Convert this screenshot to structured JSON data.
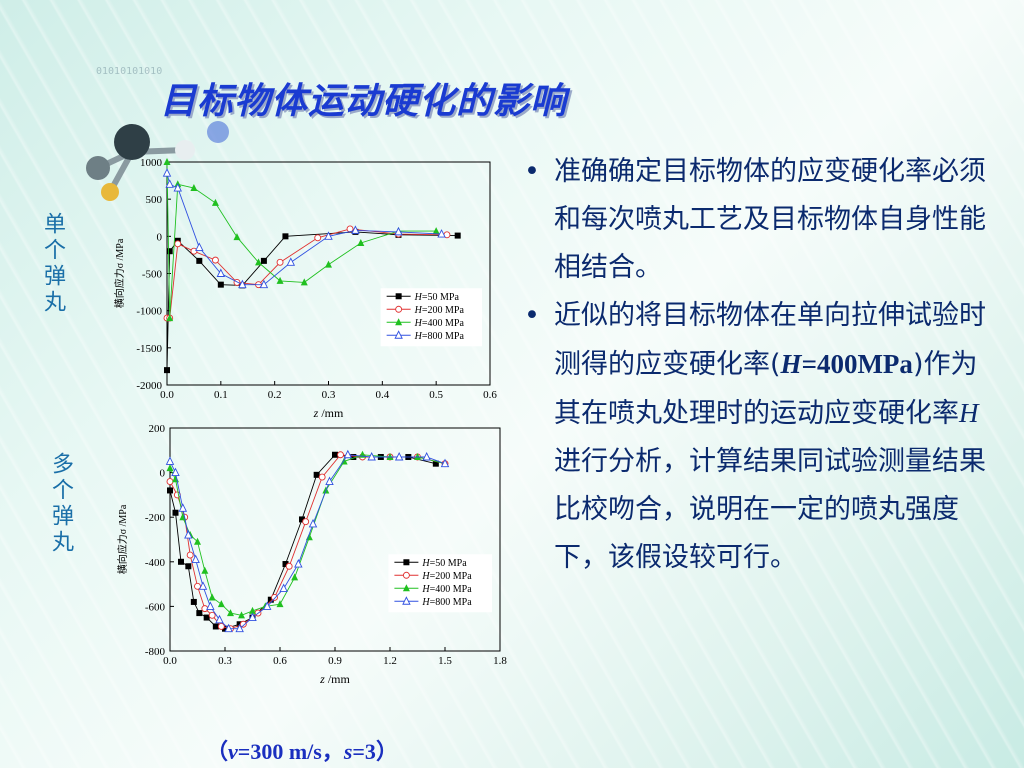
{
  "slide": {
    "title": "目标物体运动硬化的影响",
    "binary_text": "01010101010",
    "label_single": "单个弹丸",
    "label_multi": "多个弹丸",
    "bullet1": "准确确定目标物体的应变硬化率必须和每次喷丸工艺及目标物体自身性能相结合。",
    "bullet2_a": "近似的将目标物体在单向拉伸试验时测得的应变硬化率(",
    "bullet2_h": "H",
    "bullet2_val": "=400MPa",
    "bullet2_b": ")作为其在喷丸处理时的运动应变硬化率",
    "bullet2_c": " 进行分析，计算结果同试验测量结果比校吻合，说明在一定的喷丸强度下，该假设较可行。",
    "bullet_char": "•",
    "caption_open": "（",
    "caption_v": "v",
    "caption_v_val": "=300 m/s，",
    "caption_s": "s",
    "caption_s_val": "=3",
    "caption_close": "）"
  },
  "chart_data": [
    {
      "type": "line",
      "xlabel_var": "z",
      "xlabel_unit": " /mm",
      "ylabel": "横向应力σ /MPa",
      "xlim": [
        0.0,
        0.6
      ],
      "ylim": [
        -2000,
        1000
      ],
      "xticks": [
        0.0,
        0.1,
        0.2,
        0.3,
        0.4,
        0.5,
        0.6
      ],
      "xtick_labels": [
        "0.0",
        "0.1",
        "0.2",
        "0.3",
        "0.4",
        "0.5",
        "0.6"
      ],
      "yticks": [
        1000,
        500,
        0,
        -500,
        -1000,
        -1500,
        -2000
      ],
      "ytick_labels": [
        "1000",
        "500",
        "0",
        "-500",
        "-1000",
        "-1500",
        "-2000"
      ],
      "legend_position": "right-middle",
      "series": [
        {
          "name": "H=50 MPa",
          "label_var": "H",
          "label_rest": "=50 MPa",
          "color": "#000000",
          "marker": "square-filled",
          "x": [
            0.0,
            0.005,
            0.02,
            0.06,
            0.1,
            0.14,
            0.18,
            0.22,
            0.35,
            0.43,
            0.54
          ],
          "y": [
            -1800,
            -200,
            -60,
            -330,
            -650,
            -660,
            -330,
            0,
            60,
            20,
            10
          ]
        },
        {
          "name": "H=200 MPa",
          "label_var": "H",
          "label_rest": "=200 MPa",
          "color": "#e03030",
          "marker": "circle-open",
          "x": [
            0.0,
            0.005,
            0.02,
            0.05,
            0.09,
            0.13,
            0.17,
            0.21,
            0.28,
            0.34,
            0.43,
            0.52
          ],
          "y": [
            -1100,
            -1100,
            -100,
            -200,
            -320,
            -620,
            -650,
            -350,
            -20,
            100,
            30,
            20
          ]
        },
        {
          "name": "H=400 MPa",
          "label_var": "H",
          "label_rest": "=400 MPa",
          "color": "#20c020",
          "marker": "triangle-filled",
          "x": [
            0.0,
            0.005,
            0.02,
            0.05,
            0.09,
            0.13,
            0.17,
            0.21,
            0.255,
            0.3,
            0.36,
            0.43,
            0.5
          ],
          "y": [
            1000,
            -1100,
            700,
            650,
            450,
            -10,
            -350,
            -600,
            -620,
            -380,
            -90,
            70,
            70
          ]
        },
        {
          "name": "H=800 MPa",
          "label_var": "H",
          "label_rest": "=800 MPa",
          "color": "#3050e0",
          "marker": "triangle-open",
          "x": [
            0.0,
            0.005,
            0.02,
            0.06,
            0.1,
            0.14,
            0.18,
            0.23,
            0.3,
            0.35,
            0.43,
            0.51
          ],
          "y": [
            850,
            700,
            650,
            -150,
            -500,
            -650,
            -650,
            -350,
            0,
            80,
            60,
            30
          ]
        }
      ]
    },
    {
      "type": "line",
      "xlabel_var": "z",
      "xlabel_unit": " /mm",
      "ylabel": "横向应力σ /MPa",
      "xlim": [
        0.0,
        1.8
      ],
      "ylim": [
        -800,
        200
      ],
      "xticks": [
        0.0,
        0.3,
        0.6,
        0.9,
        1.2,
        1.5,
        1.8
      ],
      "xtick_labels": [
        "0.0",
        "0.3",
        "0.6",
        "0.9",
        "1.2",
        "1.5",
        "1.8"
      ],
      "yticks": [
        200,
        0,
        -200,
        -400,
        -600,
        -800
      ],
      "ytick_labels": [
        "200",
        "0",
        "-200",
        "-400",
        "-600",
        "-800"
      ],
      "legend_position": "right-middle",
      "series": [
        {
          "name": "H=50 MPa",
          "label_var": "H",
          "label_rest": "=50 MPa",
          "color": "#000000",
          "marker": "square-filled",
          "x": [
            0.0,
            0.03,
            0.06,
            0.1,
            0.13,
            0.16,
            0.2,
            0.25,
            0.3,
            0.38,
            0.45,
            0.55,
            0.63,
            0.72,
            0.8,
            0.9,
            1.0,
            1.15,
            1.3,
            1.45
          ],
          "y": [
            -80,
            -180,
            -400,
            -420,
            -580,
            -630,
            -650,
            -690,
            -700,
            -680,
            -650,
            -570,
            -410,
            -210,
            -10,
            80,
            70,
            70,
            70,
            40
          ]
        },
        {
          "name": "H=200 MPa",
          "label_var": "H",
          "label_rest": "=200 MPa",
          "color": "#e03030",
          "marker": "circle-open",
          "x": [
            0.0,
            0.04,
            0.08,
            0.11,
            0.15,
            0.19,
            0.23,
            0.28,
            0.33,
            0.4,
            0.48,
            0.57,
            0.65,
            0.74,
            0.83,
            0.93,
            1.05,
            1.2,
            1.35,
            1.5
          ],
          "y": [
            -40,
            -100,
            -200,
            -370,
            -510,
            -610,
            -640,
            -690,
            -700,
            -680,
            -630,
            -560,
            -420,
            -220,
            -20,
            80,
            70,
            70,
            70,
            40
          ]
        },
        {
          "name": "H=400 MPa",
          "label_var": "H",
          "label_rest": "=400 MPa",
          "color": "#20c020",
          "marker": "triangle-filled",
          "x": [
            0.0,
            0.03,
            0.07,
            0.11,
            0.15,
            0.19,
            0.23,
            0.28,
            0.33,
            0.39,
            0.45,
            0.52,
            0.6,
            0.68,
            0.76,
            0.85,
            0.95,
            1.05,
            1.2,
            1.35,
            1.5
          ],
          "y": [
            20,
            -30,
            -200,
            -280,
            -310,
            -440,
            -560,
            -590,
            -630,
            -640,
            -620,
            -600,
            -590,
            -470,
            -290,
            -80,
            50,
            80,
            70,
            70,
            40
          ]
        },
        {
          "name": "H=800 MPa",
          "label_var": "H",
          "label_rest": "=800 MPa",
          "color": "#3050e0",
          "marker": "triangle-open",
          "x": [
            0.0,
            0.03,
            0.07,
            0.1,
            0.14,
            0.18,
            0.22,
            0.27,
            0.32,
            0.38,
            0.45,
            0.53,
            0.62,
            0.7,
            0.78,
            0.87,
            0.97,
            1.1,
            1.25,
            1.4,
            1.5
          ],
          "y": [
            50,
            0,
            -160,
            -280,
            -390,
            -510,
            -600,
            -660,
            -700,
            -700,
            -650,
            -600,
            -520,
            -410,
            -230,
            -40,
            80,
            70,
            70,
            70,
            40
          ]
        }
      ]
    }
  ]
}
